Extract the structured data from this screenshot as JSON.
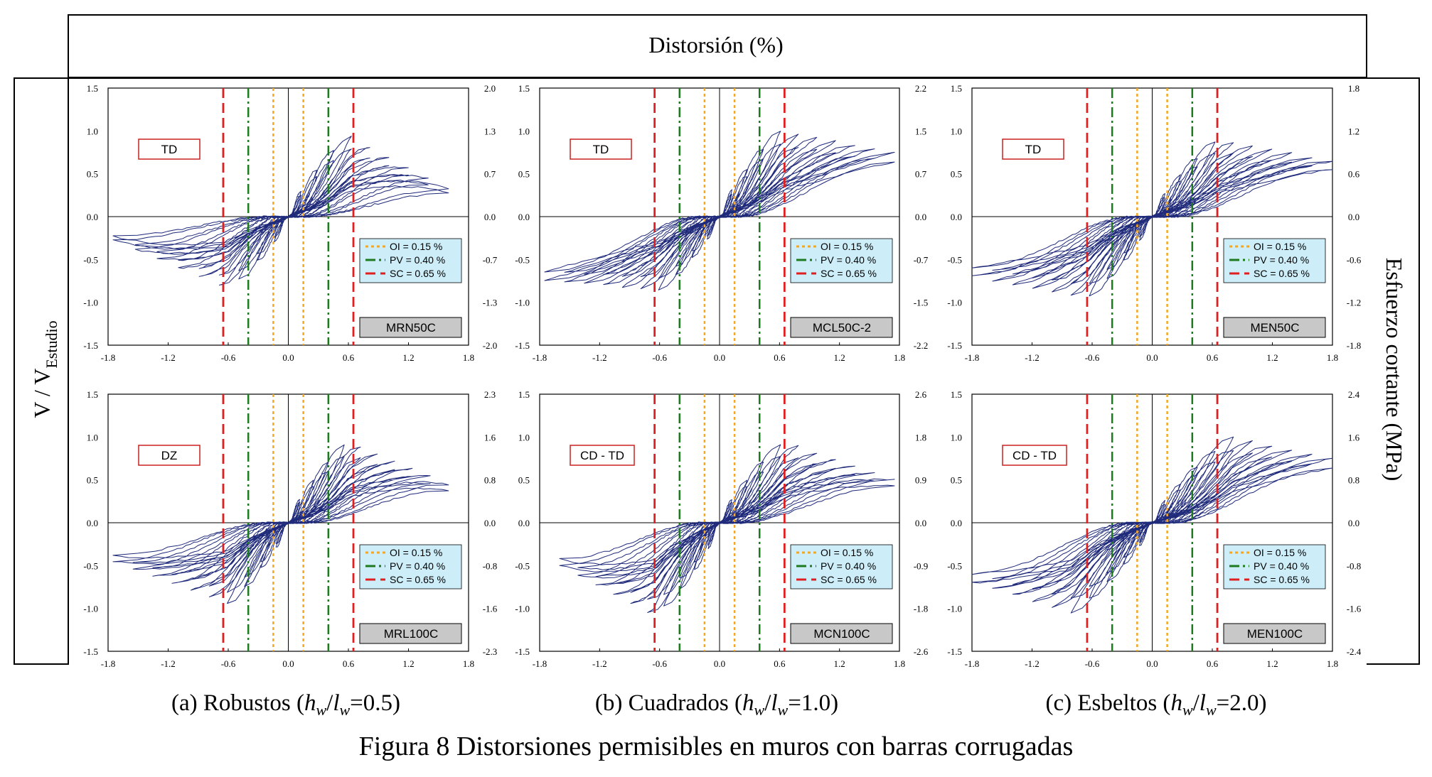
{
  "header": {
    "title": "Distorsión (%)"
  },
  "left_axis_label": {
    "main": "V  /  V",
    "sub": "Estudio"
  },
  "right_axis_label": "Esfuerzo cortante (MPa)",
  "column_labels": [
    {
      "prefix": "(a) Robustos (",
      "h": "h",
      "w1": "w",
      "slash": "/",
      "l": "l",
      "w2": "w",
      "suffix": "=0.5)"
    },
    {
      "prefix": "(b) Cuadrados (",
      "h": "h",
      "w1": "w",
      "slash": "/",
      "l": "l",
      "w2": "w",
      "suffix": "=1.0)"
    },
    {
      "prefix": "(c) Esbeltos (",
      "h": "h",
      "w1": "w",
      "slash": "/",
      "l": "l",
      "w2": "w",
      "suffix": "=2.0)"
    }
  ],
  "figure_caption": "Figura 8 Distorsiones permisibles en muros con barras corrugadas",
  "colors": {
    "curve": "#1f2a7a",
    "oi": "#f5a623",
    "pv": "#1e7a1e",
    "sc": "#e02020",
    "tag_border": "#cc2020",
    "legend_bg": "#cdeef9",
    "name_bg": "#c8c8c8"
  },
  "legend": [
    "OI = 0.15 %",
    "PV = 0.40 %",
    "SC = 0.65 %"
  ],
  "chart_data": [
    {
      "type": "line",
      "title": "MRN50C",
      "tag": "TD",
      "xlabel": "Distorsión (%)",
      "ylabel": "V / VEstudio",
      "xlim": [
        -1.8,
        1.8
      ],
      "ylim": [
        -1.5,
        1.5
      ],
      "x_ticks": [
        "-1.8",
        "-1.2",
        "-0.6",
        "0.0",
        "0.6",
        "1.2",
        "1.8"
      ],
      "y_ticks": [
        "1.5",
        "1.0",
        "0.5",
        "0.0",
        "-0.5",
        "-1.0",
        "-1.5"
      ],
      "y2_ticks": [
        "2.0",
        "1.3",
        "0.7",
        "0.0",
        "-0.7",
        "-1.3",
        "-2.0"
      ],
      "y2label": "Esfuerzo cortante (MPa)",
      "limits": {
        "OI": 0.15,
        "PV": 0.4,
        "SC": 0.65
      },
      "envelope": {
        "pos_peak_drift": 0.6,
        "pos_peak": 0.95,
        "pos_max_drift": 1.6,
        "pos_end": 0.32,
        "neg_peak_drift": -0.6,
        "neg_peak": -0.85,
        "neg_max_drift": -1.75,
        "neg_end": -0.27,
        "cycles": 9
      }
    },
    {
      "type": "line",
      "title": "MCL50C-2",
      "tag": "TD",
      "xlabel": "Distorsión (%)",
      "ylabel": "V / VEstudio",
      "xlim": [
        -1.8,
        1.8
      ],
      "ylim": [
        -1.5,
        1.5
      ],
      "x_ticks": [
        "-1.8",
        "-1.2",
        "-0.6",
        "0.0",
        "0.6",
        "1.2",
        "1.8"
      ],
      "y_ticks": [
        "1.5",
        "1.0",
        "0.5",
        "0.0",
        "-0.5",
        "-1.0",
        "-1.5"
      ],
      "y2_ticks": [
        "2.2",
        "1.5",
        "0.7",
        "0.0",
        "-0.7",
        "-1.5",
        "-2.2"
      ],
      "y2label": "Esfuerzo cortante (MPa)",
      "limits": {
        "OI": 0.15,
        "PV": 0.4,
        "SC": 0.65
      },
      "envelope": {
        "pos_peak_drift": 0.6,
        "pos_peak": 1.0,
        "pos_max_drift": 1.75,
        "pos_end": 0.75,
        "neg_peak_drift": -0.6,
        "neg_peak": -0.85,
        "neg_max_drift": -1.75,
        "neg_end": -0.75,
        "cycles": 10
      }
    },
    {
      "type": "line",
      "title": "MEN50C",
      "tag": "TD",
      "xlabel": "Distorsión (%)",
      "ylabel": "V / VEstudio",
      "xlim": [
        -1.8,
        1.8
      ],
      "ylim": [
        -1.5,
        1.5
      ],
      "x_ticks": [
        "-1.8",
        "-1.2",
        "-0.6",
        "0.0",
        "0.6",
        "1.2",
        "1.8"
      ],
      "y_ticks": [
        "1.5",
        "1.0",
        "0.5",
        "0.0",
        "-0.5",
        "-1.0",
        "-1.5"
      ],
      "y2_ticks": [
        "1.8",
        "1.2",
        "0.6",
        "0.0",
        "-0.6",
        "-1.2",
        "-1.8"
      ],
      "y2label": "Esfuerzo cortante (MPa)",
      "limits": {
        "OI": 0.15,
        "PV": 0.4,
        "SC": 0.65
      },
      "envelope": {
        "pos_peak_drift": 0.65,
        "pos_peak": 0.9,
        "pos_max_drift": 1.8,
        "pos_end": 0.65,
        "neg_peak_drift": -0.65,
        "neg_peak": -0.95,
        "neg_max_drift": -1.8,
        "neg_end": -0.7,
        "cycles": 10
      }
    },
    {
      "type": "line",
      "title": "MRL100C",
      "tag": "DZ",
      "xlabel": "Distorsión (%)",
      "ylabel": "V / VEstudio",
      "xlim": [
        -1.8,
        1.8
      ],
      "ylim": [
        -1.5,
        1.5
      ],
      "x_ticks": [
        "-1.8",
        "-1.2",
        "-0.6",
        "0.0",
        "0.6",
        "1.2",
        "1.8"
      ],
      "y_ticks": [
        "1.5",
        "1.0",
        "0.5",
        "0.0",
        "-0.5",
        "-1.0",
        "-1.5"
      ],
      "y2_ticks": [
        "2.3",
        "1.6",
        "0.8",
        "0.0",
        "-0.8",
        "-1.6",
        "-2.3"
      ],
      "y2label": "Esfuerzo cortante (MPa)",
      "limits": {
        "OI": 0.15,
        "PV": 0.4,
        "SC": 0.65
      },
      "envelope": {
        "pos_peak_drift": 0.6,
        "pos_peak": 0.95,
        "pos_max_drift": 1.6,
        "pos_end": 0.45,
        "neg_peak_drift": -0.6,
        "neg_peak": -0.95,
        "neg_max_drift": -1.75,
        "neg_end": -0.45,
        "cycles": 10
      }
    },
    {
      "type": "line",
      "title": "MCN100C",
      "tag": "CD - TD",
      "xlabel": "Distorsión (%)",
      "ylabel": "V / VEstudio",
      "xlim": [
        -1.8,
        1.8
      ],
      "ylim": [
        -1.5,
        1.5
      ],
      "x_ticks": [
        "-1.8",
        "-1.2",
        "-0.6",
        "0.0",
        "0.6",
        "1.2",
        "1.8"
      ],
      "y_ticks": [
        "1.5",
        "1.0",
        "0.5",
        "0.0",
        "-0.5",
        "-1.0",
        "-1.5"
      ],
      "y2_ticks": [
        "2.6",
        "1.8",
        "0.9",
        "0.0",
        "-0.9",
        "-1.8",
        "-2.6"
      ],
      "y2label": "Esfuerzo cortante (MPa)",
      "limits": {
        "OI": 0.15,
        "PV": 0.4,
        "SC": 0.65
      },
      "envelope": {
        "pos_peak_drift": 0.65,
        "pos_peak": 0.95,
        "pos_max_drift": 1.75,
        "pos_end": 0.5,
        "neg_peak_drift": -0.65,
        "neg_peak": -1.1,
        "neg_max_drift": -1.6,
        "neg_end": -0.5,
        "cycles": 10
      }
    },
    {
      "type": "line",
      "title": "MEN100C",
      "tag": "CD - TD",
      "xlabel": "Distorsión (%)",
      "ylabel": "V / VEstudio",
      "xlim": [
        -1.8,
        1.8
      ],
      "ylim": [
        -1.5,
        1.5
      ],
      "x_ticks": [
        "-1.8",
        "-1.2",
        "-0.6",
        "0.0",
        "0.6",
        "1.2",
        "1.8"
      ],
      "y_ticks": [
        "1.5",
        "1.0",
        "0.5",
        "0.0",
        "-0.5",
        "-1.0",
        "-1.5"
      ],
      "y2_ticks": [
        "2.4",
        "1.6",
        "0.8",
        "0.0",
        "-0.8",
        "-1.6",
        "-2.4"
      ],
      "y2label": "Esfuerzo cortante (MPa)",
      "limits": {
        "OI": 0.15,
        "PV": 0.4,
        "SC": 0.65
      },
      "envelope": {
        "pos_peak_drift": 0.8,
        "pos_peak": 1.0,
        "pos_max_drift": 1.8,
        "pos_end": 0.75,
        "neg_peak_drift": -0.8,
        "neg_peak": -1.05,
        "neg_max_drift": -1.8,
        "neg_end": -0.7,
        "cycles": 10
      }
    }
  ]
}
